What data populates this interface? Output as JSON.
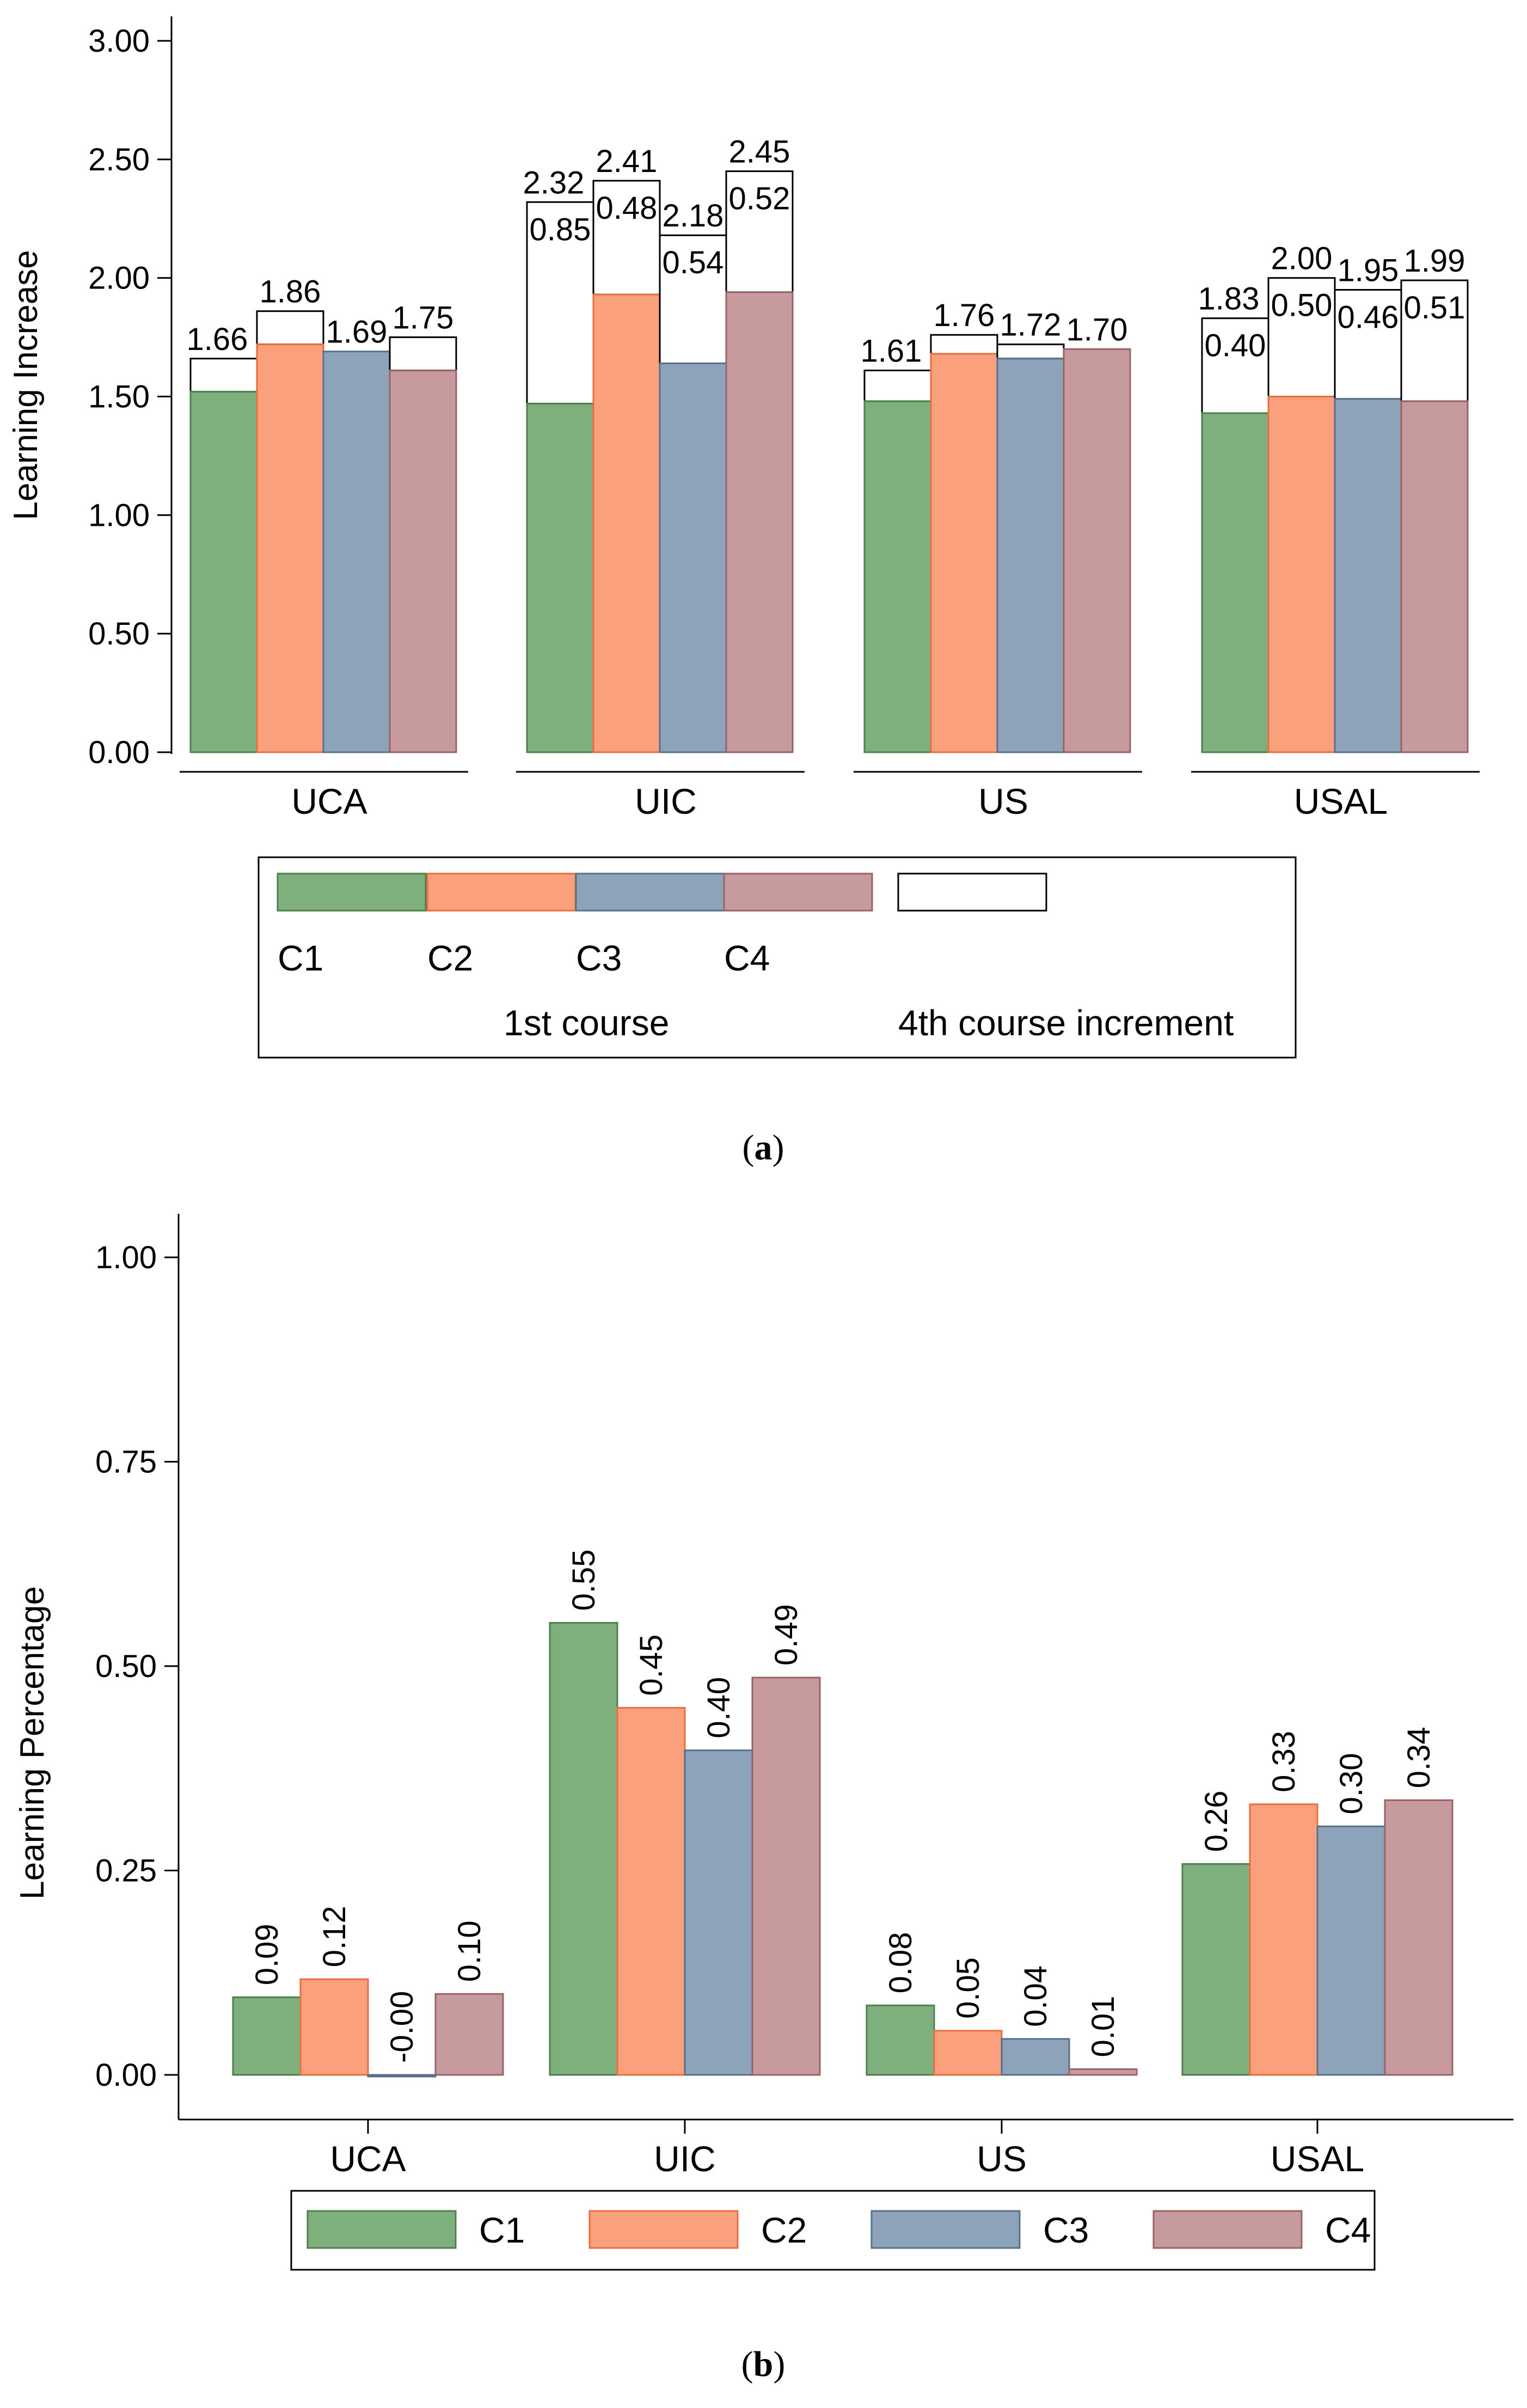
{
  "chart_data": [
    {
      "id": "a",
      "type": "bar",
      "stacked": true,
      "ylabel": "Learning Increase",
      "ylim": [
        0,
        3
      ],
      "yticks": [
        "0.00",
        "0.50",
        "1.00",
        "1.50",
        "2.00",
        "2.50",
        "3.00"
      ],
      "ytick_values": [
        0,
        0.5,
        1,
        1.5,
        2,
        2.5,
        3
      ],
      "categories": [
        "UCA",
        "UIC",
        "US",
        "USAL"
      ],
      "series_names": [
        "C1",
        "C2",
        "C3",
        "C4"
      ],
      "series_colors": [
        "#7eb07e",
        "#fba07d",
        "#8da3ba",
        "#c79a9d"
      ],
      "series_edge_colors": [
        "#4f7f4f",
        "#e86e3e",
        "#56708a",
        "#9a6266"
      ],
      "increment_color": "#ffffff",
      "base_values": [
        [
          1.52,
          1.72,
          1.69,
          1.61
        ],
        [
          1.47,
          1.93,
          1.64,
          1.94
        ],
        [
          1.48,
          1.68,
          1.66,
          1.7
        ],
        [
          1.43,
          1.5,
          1.49,
          1.48
        ]
      ],
      "total_values": [
        [
          1.66,
          1.86,
          1.69,
          1.75
        ],
        [
          2.32,
          2.41,
          2.18,
          2.45
        ],
        [
          1.61,
          1.76,
          1.72,
          1.7
        ],
        [
          1.83,
          2.0,
          1.95,
          1.99
        ]
      ],
      "total_labels": [
        [
          "1.66",
          "1.86",
          "1.69",
          "1.75"
        ],
        [
          "2.32",
          "2.41",
          "2.18",
          "2.45"
        ],
        [
          "1.61",
          "1.76",
          "1.72",
          "1.70"
        ],
        [
          "1.83",
          "2.00",
          "1.95",
          "1.99"
        ]
      ],
      "increment_labels": [
        [
          "",
          "",
          "",
          ""
        ],
        [
          "0.85",
          "0.48",
          "0.54",
          "0.52"
        ],
        [
          "",
          "",
          "",
          ""
        ],
        [
          "0.40",
          "0.50",
          "0.46",
          "0.51"
        ]
      ],
      "legend": {
        "items": [
          "C1",
          "C2",
          "C3",
          "C4"
        ],
        "group_label_1": "1st course",
        "group_label_2": "4th course increment"
      }
    },
    {
      "id": "b",
      "type": "bar",
      "ylabel": "Learning Percentage",
      "ylim": [
        0,
        1
      ],
      "yticks": [
        "0.00",
        "0.25",
        "0.50",
        "0.75",
        "1.00"
      ],
      "ytick_values": [
        0,
        0.25,
        0.5,
        0.75,
        1
      ],
      "categories": [
        "UCA",
        "UIC",
        "US",
        "USAL"
      ],
      "series_names": [
        "C1",
        "C2",
        "C3",
        "C4"
      ],
      "series_colors": [
        "#7eb07e",
        "#fba07d",
        "#8da3ba",
        "#c79a9d"
      ],
      "series_edge_colors": [
        "#4f7f4f",
        "#e86e3e",
        "#56708a",
        "#9a6266"
      ],
      "values": [
        [
          0.095,
          0.117,
          -0.002,
          0.099
        ],
        [
          0.553,
          0.449,
          0.397,
          0.486
        ],
        [
          0.085,
          0.054,
          0.044,
          0.007
        ],
        [
          0.258,
          0.331,
          0.304,
          0.336
        ]
      ],
      "labels": [
        [
          "0.09",
          "0.12",
          "-0.00",
          "0.10"
        ],
        [
          "0.55",
          "0.45",
          "0.40",
          "0.49"
        ],
        [
          "0.08",
          "0.05",
          "0.04",
          "0.01"
        ],
        [
          "0.26",
          "0.33",
          "0.30",
          "0.34"
        ]
      ],
      "legend": {
        "items": [
          "C1",
          "C2",
          "C3",
          "C4"
        ]
      }
    }
  ],
  "captions": {
    "a": "a",
    "b": "b"
  }
}
